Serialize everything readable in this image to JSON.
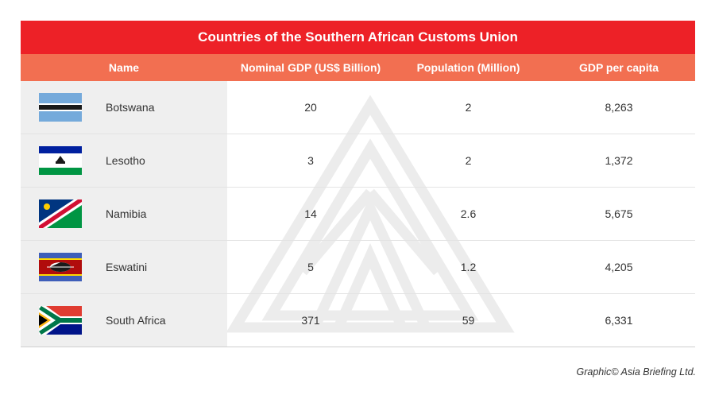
{
  "chart_data": {
    "type": "table",
    "title": "Countries of the Southern African Customs Union",
    "columns": [
      "Name",
      "Nominal GDP (US$ Billion)",
      "Population (Million)",
      "GDP per capita"
    ],
    "rows": [
      {
        "name": "Botswana",
        "flag": "botswana-flag",
        "gdp": "20",
        "population": "2",
        "gdp_per_capita": "8,263"
      },
      {
        "name": "Lesotho",
        "flag": "lesotho-flag",
        "gdp": "3",
        "population": "2",
        "gdp_per_capita": "1,372"
      },
      {
        "name": "Namibia",
        "flag": "namibia-flag",
        "gdp": "14",
        "population": "2.6",
        "gdp_per_capita": "5,675"
      },
      {
        "name": "Eswatini",
        "flag": "eswatini-flag",
        "gdp": "5",
        "population": "1.2",
        "gdp_per_capita": "4,205"
      },
      {
        "name": "South Africa",
        "flag": "south-africa-flag",
        "gdp": "371",
        "population": "59",
        "gdp_per_capita": "6,331"
      }
    ]
  },
  "credit": "Graphic© Asia Briefing Ltd.",
  "colors": {
    "title_bg": "#ed2127",
    "header_bg": "#f26f51",
    "name_col_bg": "#efefef"
  }
}
